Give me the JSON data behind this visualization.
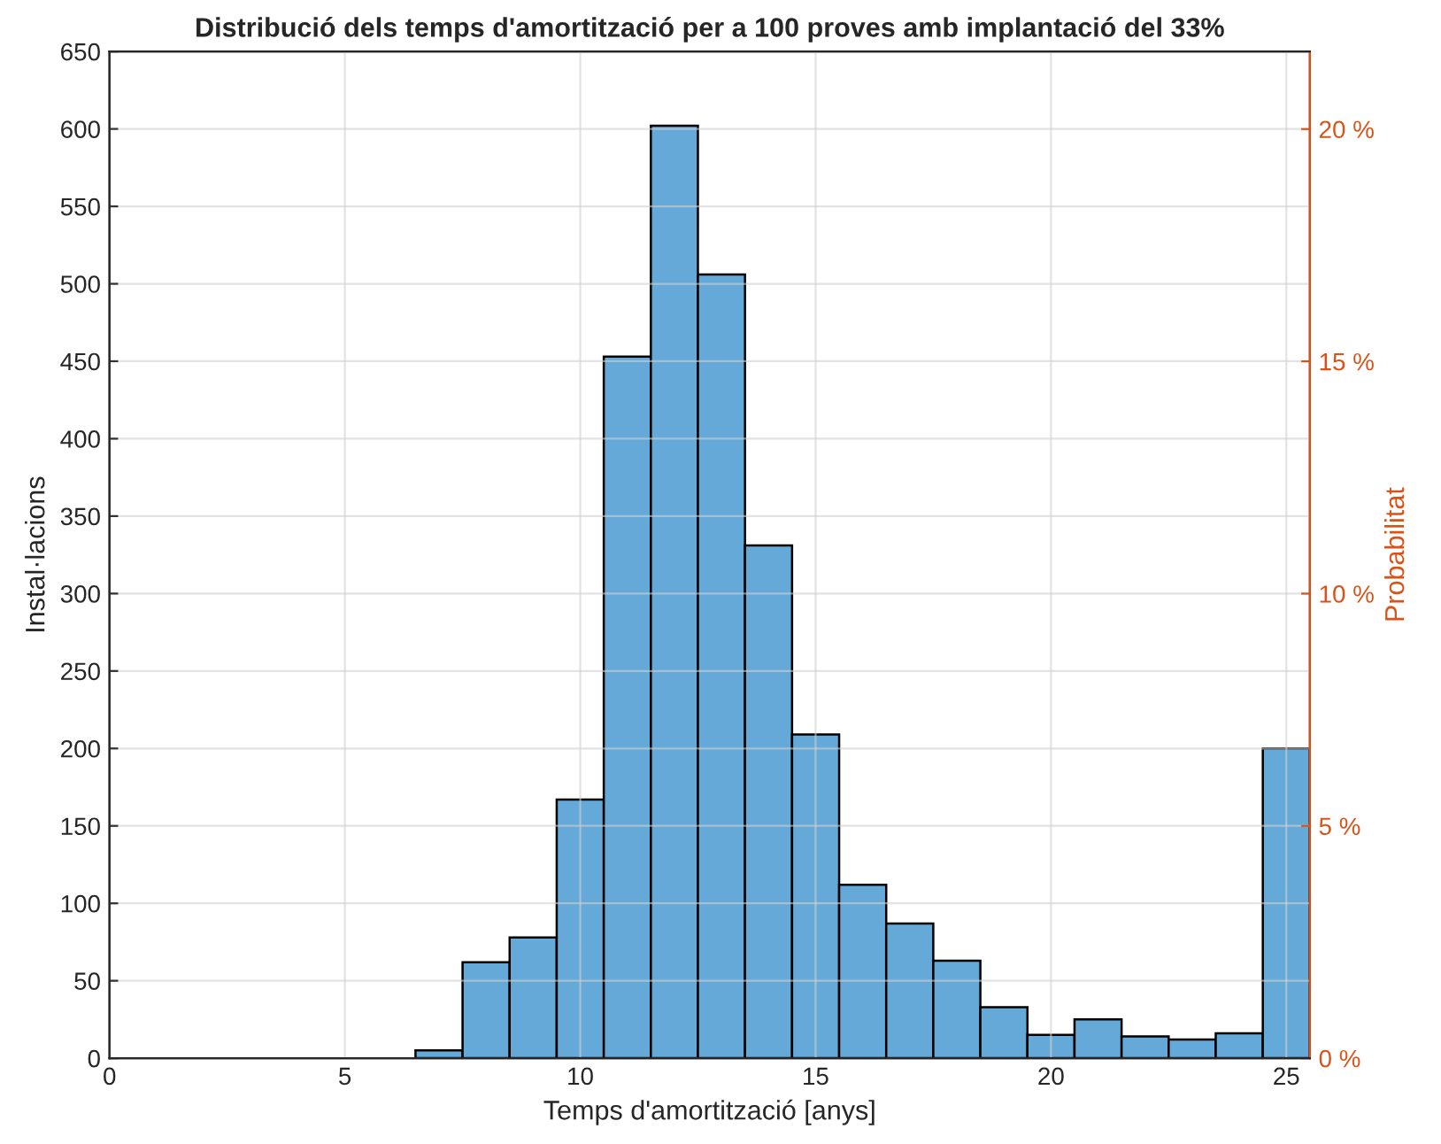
{
  "chart_data": {
    "type": "histogram",
    "title": "Distribució dels temps d'amortització per a 100 proves amb implantació del 33%",
    "xlabel": "Temps d'amortització [anys]",
    "ylabel": "Instal·lacions",
    "y2label": "Probabilitat",
    "bins": [
      6.5,
      7.5,
      8.5,
      9.5,
      10.5,
      11.5,
      12.5,
      13.5,
      14.5,
      15.5,
      16.5,
      17.5,
      18.5,
      19.5,
      20.5,
      21.5,
      22.5,
      23.5,
      24.5,
      25.5
    ],
    "values": [
      5,
      62,
      78,
      167,
      453,
      602,
      506,
      331,
      209,
      112,
      87,
      63,
      33,
      15,
      25,
      14,
      12,
      16,
      200
    ],
    "color": "#64a9d8",
    "xlim": [
      0,
      25.5
    ],
    "xticks": [
      0,
      5,
      10,
      15,
      20,
      25
    ],
    "ylim": [
      0,
      650
    ],
    "yticks": [
      0,
      50,
      100,
      150,
      200,
      250,
      300,
      350,
      400,
      450,
      500,
      550,
      600,
      650
    ],
    "y2lim": [
      0,
      21.67
    ],
    "y2ticks": [
      {
        "value": 0,
        "label": "0 %"
      },
      {
        "value": 5,
        "label": "5 %"
      },
      {
        "value": 10,
        "label": "10 %"
      },
      {
        "value": 15,
        "label": "15 %"
      },
      {
        "value": 20,
        "label": "20 %"
      }
    ],
    "grid": true
  }
}
